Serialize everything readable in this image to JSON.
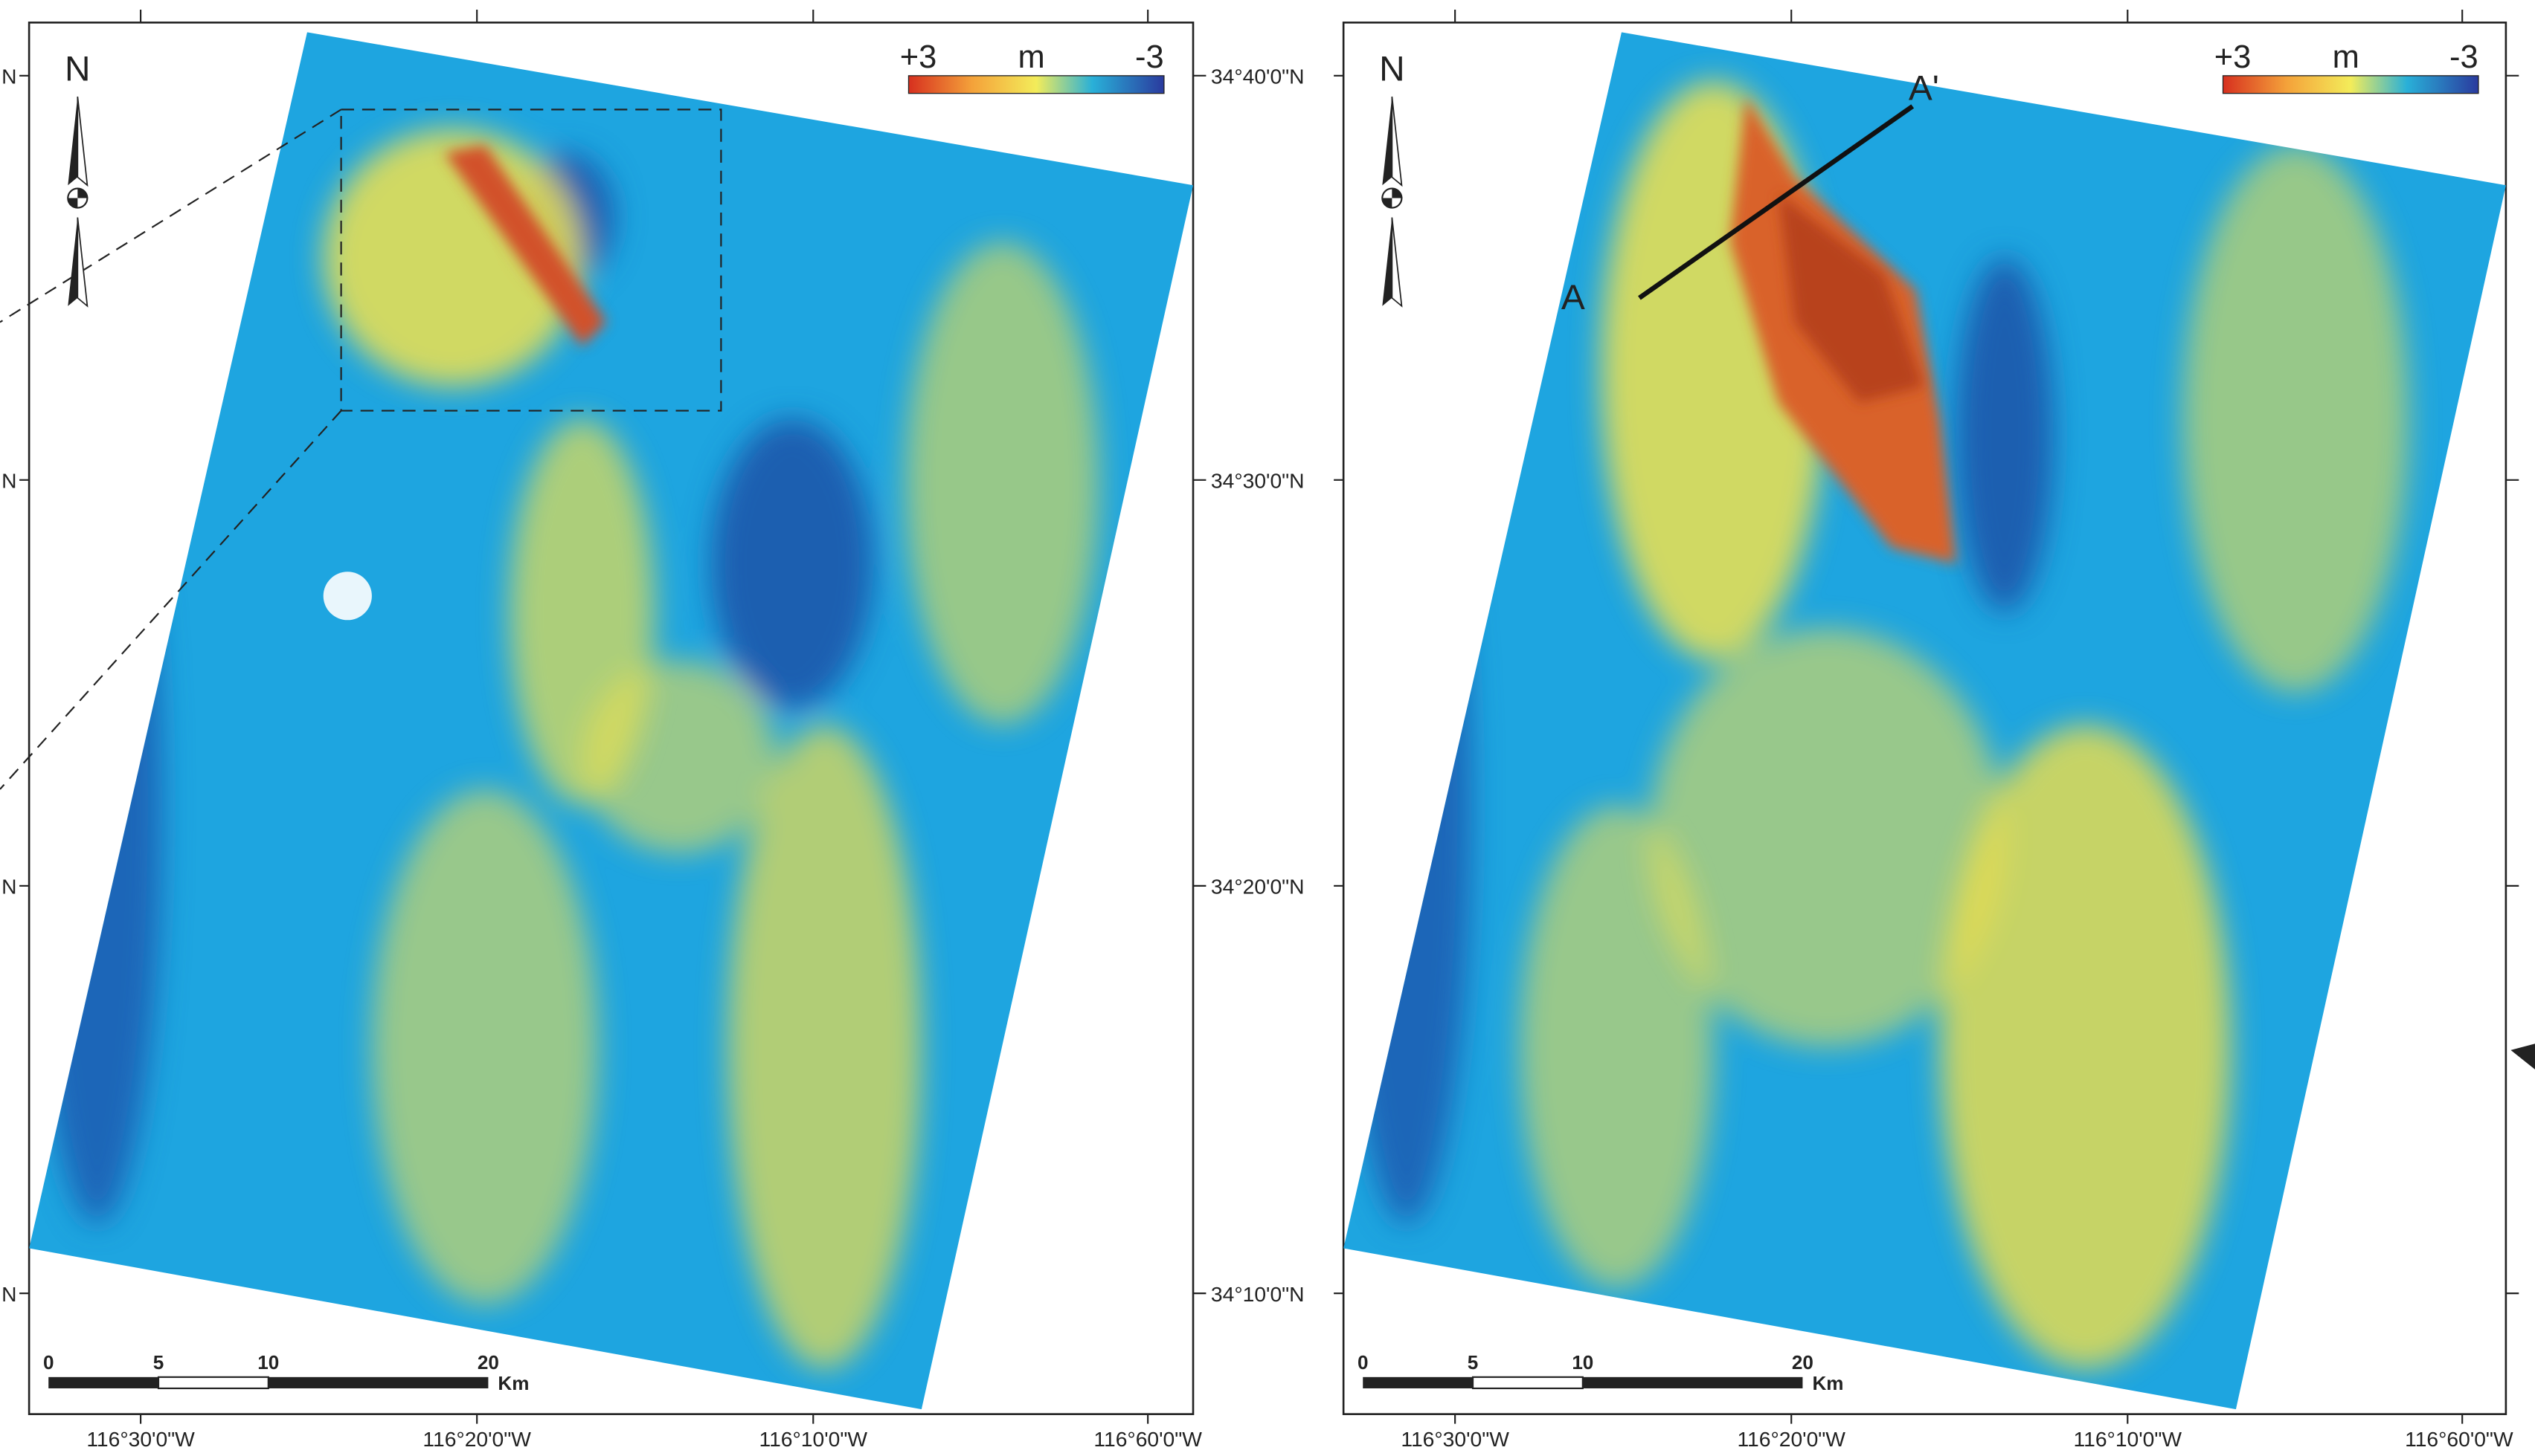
{
  "legend": {
    "max": "+3",
    "unit": "m",
    "min": "-3"
  },
  "north": "N",
  "scale_bar": {
    "labels": [
      "0",
      "5",
      "10",
      "20"
    ],
    "unit": "Km"
  },
  "longitudes": [
    "116°30'0\"W",
    "116°20'0\"W",
    "116°10'0\"W",
    "116°60'0\"W"
  ],
  "latitudes": [
    "34°40'0\"N",
    "34°30'0\"N",
    "34°20'0\"N",
    "34°10'0\"N"
  ],
  "left_edge_labels": [
    "N",
    "N",
    "N",
    "N"
  ],
  "profile": {
    "start": "A",
    "end": "A'"
  }
}
